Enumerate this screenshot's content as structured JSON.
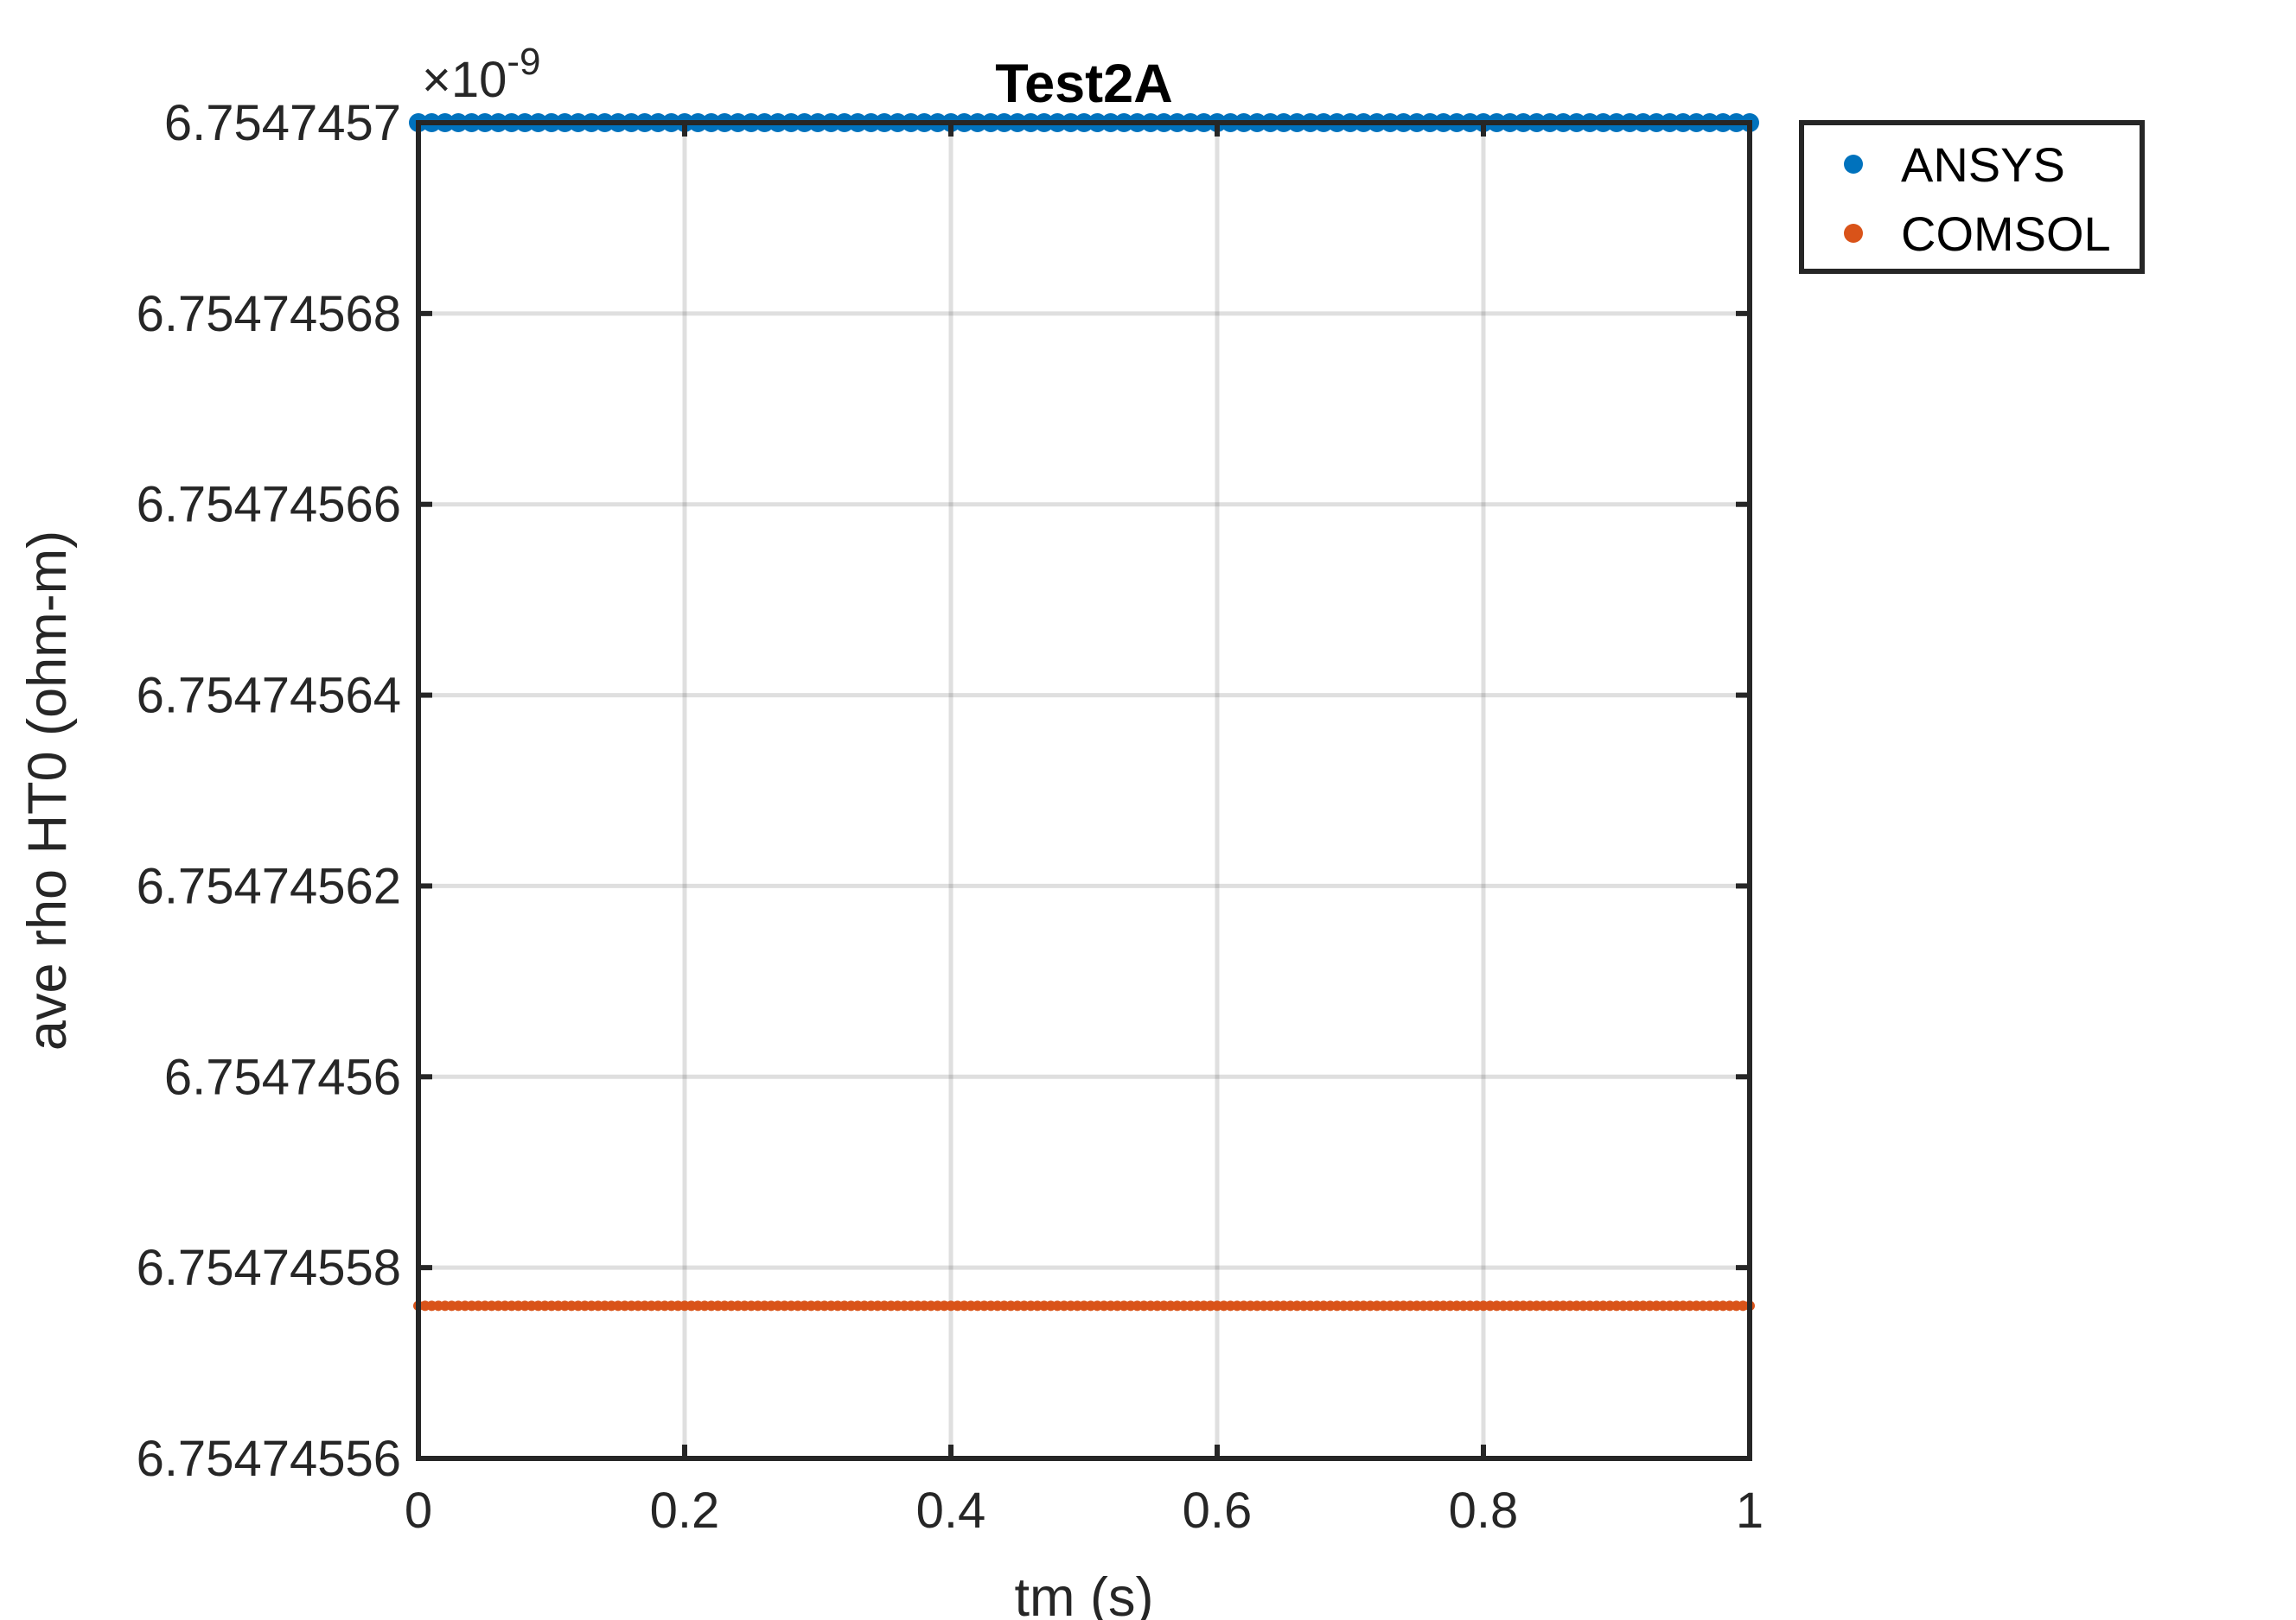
{
  "chart_data": {
    "type": "scatter",
    "title": "Test2A",
    "xlabel": "tm (s)",
    "ylabel": "ave rho HT0 (ohm-m)",
    "exponent_multiplier": "×10",
    "exponent_power": "-9",
    "xlim": [
      0,
      1
    ],
    "ylim": [
      6.75474556,
      6.7547457
    ],
    "x_ticks": [
      0,
      0.2,
      0.4,
      0.6,
      0.8,
      1
    ],
    "x_tick_labels": [
      "0",
      "0.2",
      "0.4",
      "0.6",
      "0.8",
      "1"
    ],
    "y_ticks": [
      6.75474556,
      6.75474558,
      6.7547456,
      6.75474562,
      6.75474564,
      6.75474566,
      6.75474568,
      6.7547457
    ],
    "y_tick_labels": [
      "6.75474556",
      "6.75474558",
      "6.7547456",
      "6.75474562",
      "6.75474564",
      "6.75474566",
      "6.75474568",
      "6.7547457"
    ],
    "grid": true,
    "legend_position": "outside-top-right",
    "series": [
      {
        "name": "ANSYS",
        "color": "#0072BD",
        "constant_value": 6.7547457,
        "x_range": [
          0,
          1
        ],
        "point_count": 101
      },
      {
        "name": "COMSOL",
        "color": "#D95319",
        "constant_value": 6.754745576,
        "x_range": [
          0,
          1
        ],
        "point_count": 201
      }
    ]
  }
}
